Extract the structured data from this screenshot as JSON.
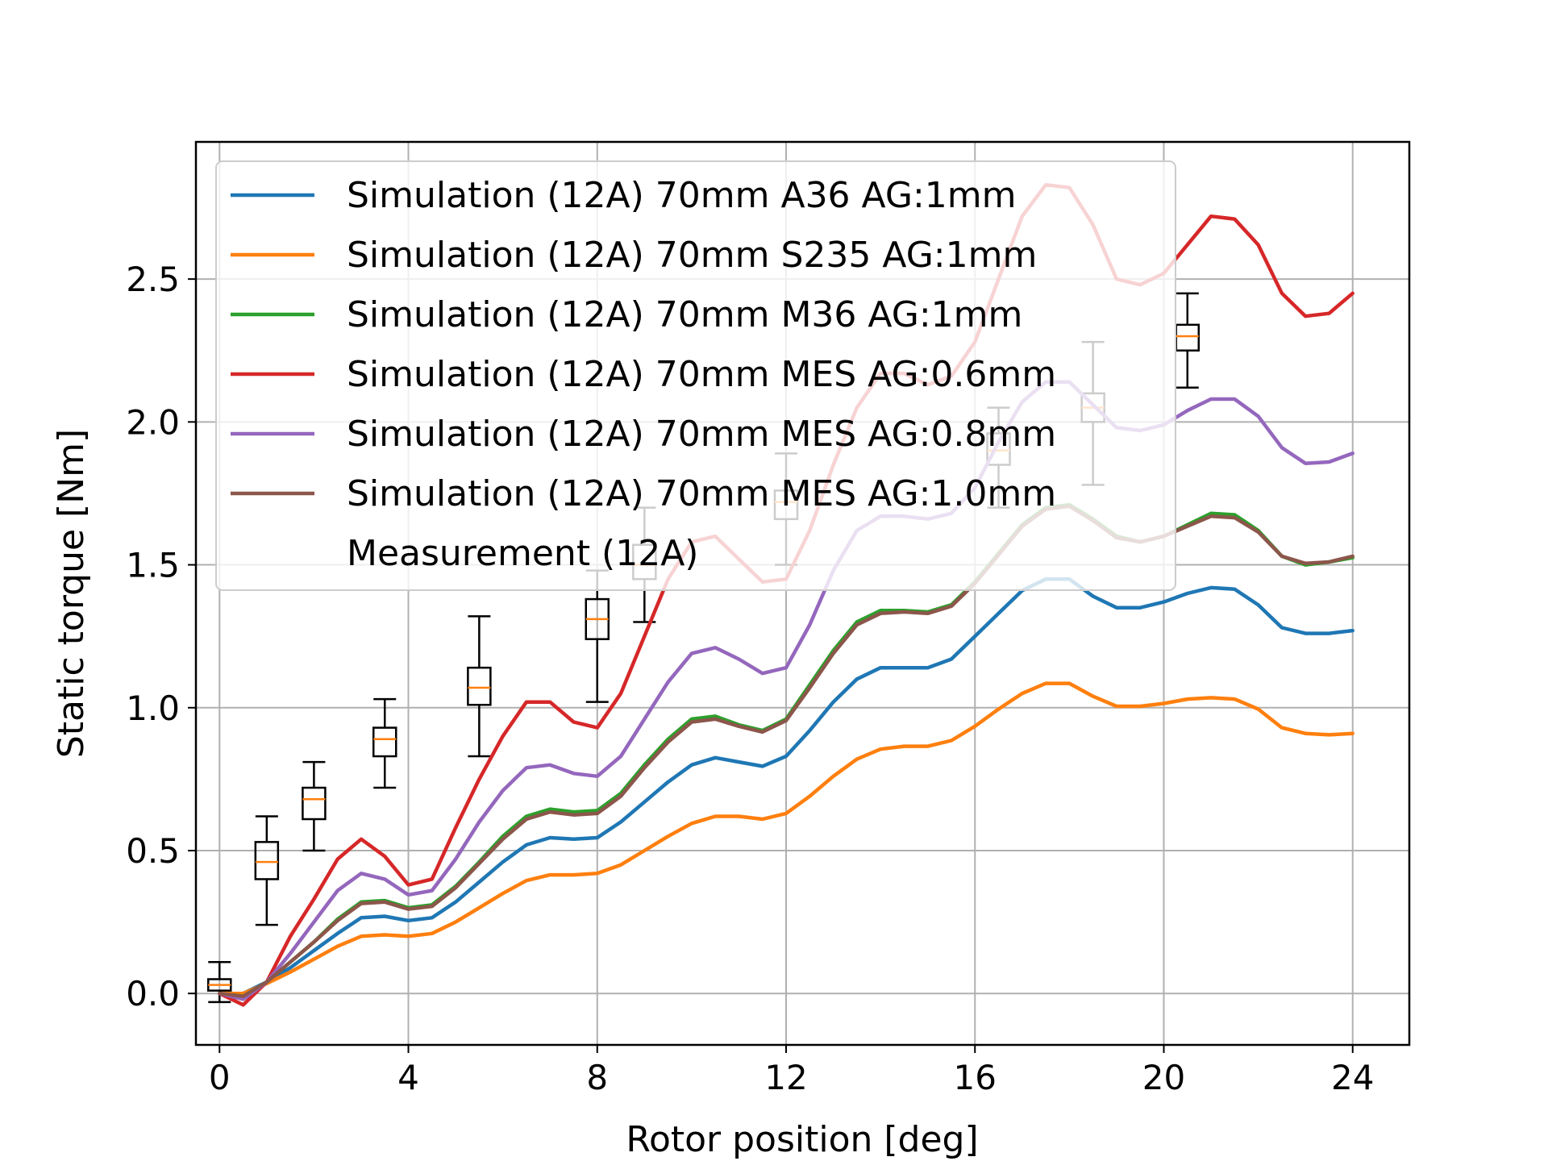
{
  "chart_data": {
    "type": "line",
    "xlabel": "Rotor position [deg]",
    "ylabel": "Static torque [Nm]",
    "xlim": [
      -0.5,
      25.2
    ],
    "ylim": [
      -0.18,
      2.98
    ],
    "xticks": [
      0,
      4,
      8,
      12,
      16,
      20,
      24
    ],
    "yticks": [
      0.0,
      0.5,
      1.0,
      1.5,
      2.0,
      2.5
    ],
    "xtick_labels": [
      "0",
      "4",
      "8",
      "12",
      "16",
      "20",
      "24"
    ],
    "ytick_labels": [
      "0.0",
      "0.5",
      "1.0",
      "1.5",
      "2.0",
      "2.5"
    ],
    "grid": true,
    "legend_position": "upper-left",
    "series": [
      {
        "name": "Simulation (12A) 70mm A36 AG:1mm",
        "color": "#1f77b4",
        "x": [
          0,
          0.5,
          1,
          1.5,
          2,
          2.5,
          3,
          3.5,
          4,
          4.5,
          5,
          5.5,
          6,
          6.5,
          7,
          7.5,
          8,
          8.5,
          9,
          9.5,
          10,
          10.5,
          11,
          11.5,
          12,
          12.5,
          13,
          13.5,
          14,
          14.5,
          15,
          15.5,
          16,
          16.5,
          17,
          17.5,
          18,
          18.5,
          19,
          19.5,
          20,
          20.5,
          21,
          21.5,
          22,
          22.5,
          23,
          23.5,
          24
        ],
        "y": [
          0.0,
          0.0,
          0.04,
          0.09,
          0.15,
          0.21,
          0.265,
          0.27,
          0.255,
          0.265,
          0.32,
          0.39,
          0.46,
          0.52,
          0.545,
          0.54,
          0.545,
          0.6,
          0.67,
          0.74,
          0.8,
          0.825,
          0.81,
          0.795,
          0.83,
          0.92,
          1.02,
          1.1,
          1.14,
          1.14,
          1.14,
          1.17,
          1.25,
          1.33,
          1.41,
          1.45,
          1.45,
          1.39,
          1.35,
          1.35,
          1.37,
          1.4,
          1.42,
          1.415,
          1.36,
          1.28,
          1.26,
          1.26,
          1.27
        ]
      },
      {
        "name": "Simulation (12A) 70mm S235 AG:1mm",
        "color": "#ff7f0e",
        "x": [
          0,
          0.5,
          1,
          1.5,
          2,
          2.5,
          3,
          3.5,
          4,
          4.5,
          5,
          5.5,
          6,
          6.5,
          7,
          7.5,
          8,
          8.5,
          9,
          9.5,
          10,
          10.5,
          11,
          11.5,
          12,
          12.5,
          13,
          13.5,
          14,
          14.5,
          15,
          15.5,
          16,
          16.5,
          17,
          17.5,
          18,
          18.5,
          19,
          19.5,
          20,
          20.5,
          21,
          21.5,
          22,
          22.5,
          23,
          23.5,
          24
        ],
        "y": [
          0.0,
          0.0,
          0.035,
          0.075,
          0.12,
          0.165,
          0.2,
          0.205,
          0.2,
          0.21,
          0.25,
          0.3,
          0.35,
          0.395,
          0.415,
          0.415,
          0.42,
          0.45,
          0.5,
          0.55,
          0.595,
          0.62,
          0.62,
          0.61,
          0.63,
          0.69,
          0.76,
          0.82,
          0.855,
          0.865,
          0.865,
          0.885,
          0.935,
          0.995,
          1.05,
          1.085,
          1.085,
          1.04,
          1.005,
          1.005,
          1.015,
          1.03,
          1.035,
          1.03,
          0.995,
          0.93,
          0.91,
          0.905,
          0.91
        ]
      },
      {
        "name": "Simulation (12A) 70mm M36 AG:1mm",
        "color": "#2ca02c",
        "x": [
          0,
          0.5,
          1,
          1.5,
          2,
          2.5,
          3,
          3.5,
          4,
          4.5,
          5,
          5.5,
          6,
          6.5,
          7,
          7.5,
          8,
          8.5,
          9,
          9.5,
          10,
          10.5,
          11,
          11.5,
          12,
          12.5,
          13,
          13.5,
          14,
          14.5,
          15,
          15.5,
          16,
          16.5,
          17,
          17.5,
          18,
          18.5,
          19,
          19.5,
          20,
          20.5,
          21,
          21.5,
          22,
          22.5,
          23,
          23.5,
          24
        ],
        "y": [
          0.0,
          -0.01,
          0.04,
          0.11,
          0.18,
          0.26,
          0.32,
          0.325,
          0.3,
          0.31,
          0.375,
          0.46,
          0.55,
          0.62,
          0.645,
          0.635,
          0.64,
          0.7,
          0.8,
          0.89,
          0.96,
          0.97,
          0.94,
          0.92,
          0.96,
          1.08,
          1.2,
          1.3,
          1.34,
          1.34,
          1.335,
          1.36,
          1.44,
          1.54,
          1.64,
          1.7,
          1.71,
          1.66,
          1.6,
          1.58,
          1.6,
          1.64,
          1.68,
          1.675,
          1.62,
          1.53,
          1.5,
          1.51,
          1.525
        ]
      },
      {
        "name": "Simulation (12A) 70mm MES AG:0.6mm",
        "color": "#d62728",
        "x": [
          0,
          0.5,
          1,
          1.5,
          2,
          2.5,
          3,
          3.5,
          4,
          4.5,
          5,
          5.5,
          6,
          6.5,
          7,
          7.5,
          8,
          8.5,
          9,
          9.5,
          10,
          10.5,
          11,
          11.5,
          12,
          12.5,
          13,
          13.5,
          14,
          14.5,
          15,
          15.5,
          16,
          16.5,
          17,
          17.5,
          18,
          18.5,
          19,
          19.5,
          20,
          20.5,
          21,
          21.5,
          22,
          22.5,
          23,
          23.5,
          24
        ],
        "y": [
          0.0,
          -0.04,
          0.04,
          0.2,
          0.33,
          0.47,
          0.54,
          0.48,
          0.38,
          0.4,
          0.58,
          0.75,
          0.9,
          1.02,
          1.02,
          0.95,
          0.93,
          1.05,
          1.25,
          1.45,
          1.58,
          1.6,
          1.52,
          1.44,
          1.45,
          1.62,
          1.85,
          2.05,
          2.17,
          2.17,
          2.13,
          2.16,
          2.28,
          2.5,
          2.72,
          2.83,
          2.82,
          2.69,
          2.5,
          2.48,
          2.52,
          2.62,
          2.72,
          2.71,
          2.62,
          2.45,
          2.37,
          2.38,
          2.45
        ]
      },
      {
        "name": "Simulation (12A) 70mm MES AG:0.8mm",
        "color": "#9467bd",
        "x": [
          0,
          0.5,
          1,
          1.5,
          2,
          2.5,
          3,
          3.5,
          4,
          4.5,
          5,
          5.5,
          6,
          6.5,
          7,
          7.5,
          8,
          8.5,
          9,
          9.5,
          10,
          10.5,
          11,
          11.5,
          12,
          12.5,
          13,
          13.5,
          14,
          14.5,
          15,
          15.5,
          16,
          16.5,
          17,
          17.5,
          18,
          18.5,
          19,
          19.5,
          20,
          20.5,
          21,
          21.5,
          22,
          22.5,
          23,
          23.5,
          24
        ],
        "y": [
          0.0,
          -0.02,
          0.04,
          0.14,
          0.25,
          0.36,
          0.42,
          0.4,
          0.345,
          0.36,
          0.47,
          0.6,
          0.71,
          0.79,
          0.8,
          0.77,
          0.76,
          0.83,
          0.96,
          1.09,
          1.19,
          1.21,
          1.17,
          1.12,
          1.14,
          1.29,
          1.48,
          1.62,
          1.67,
          1.67,
          1.66,
          1.68,
          1.77,
          1.93,
          2.07,
          2.14,
          2.14,
          2.06,
          1.98,
          1.97,
          1.99,
          2.04,
          2.08,
          2.08,
          2.02,
          1.91,
          1.855,
          1.86,
          1.89
        ]
      },
      {
        "name": "Simulation (12A) 70mm MES AG:1.0mm",
        "color": "#8c564b",
        "x": [
          0,
          0.5,
          1,
          1.5,
          2,
          2.5,
          3,
          3.5,
          4,
          4.5,
          5,
          5.5,
          6,
          6.5,
          7,
          7.5,
          8,
          8.5,
          9,
          9.5,
          10,
          10.5,
          11,
          11.5,
          12,
          12.5,
          13,
          13.5,
          14,
          14.5,
          15,
          15.5,
          16,
          16.5,
          17,
          17.5,
          18,
          18.5,
          19,
          19.5,
          20,
          20.5,
          21,
          21.5,
          22,
          22.5,
          23,
          23.5,
          24
        ],
        "y": [
          0.0,
          -0.01,
          0.04,
          0.11,
          0.18,
          0.255,
          0.315,
          0.32,
          0.295,
          0.305,
          0.37,
          0.455,
          0.54,
          0.61,
          0.635,
          0.625,
          0.63,
          0.69,
          0.79,
          0.88,
          0.95,
          0.96,
          0.935,
          0.915,
          0.955,
          1.07,
          1.19,
          1.29,
          1.33,
          1.335,
          1.33,
          1.355,
          1.435,
          1.535,
          1.635,
          1.695,
          1.705,
          1.655,
          1.595,
          1.58,
          1.6,
          1.635,
          1.67,
          1.665,
          1.615,
          1.53,
          1.505,
          1.51,
          1.53
        ]
      }
    ],
    "boxplots": {
      "name": "Measurement (12A)",
      "box_color": "#000000",
      "median_color": "#ff7f0e",
      "boxes": [
        {
          "x": 0.0,
          "whislo": -0.03,
          "q1": 0.01,
          "med": 0.03,
          "q3": 0.05,
          "whishi": 0.11
        },
        {
          "x": 1.0,
          "whislo": 0.24,
          "q1": 0.4,
          "med": 0.46,
          "q3": 0.53,
          "whishi": 0.62
        },
        {
          "x": 2.0,
          "whislo": 0.5,
          "q1": 0.61,
          "med": 0.68,
          "q3": 0.72,
          "whishi": 0.81
        },
        {
          "x": 3.5,
          "whislo": 0.72,
          "q1": 0.83,
          "med": 0.89,
          "q3": 0.93,
          "whishi": 1.03
        },
        {
          "x": 5.5,
          "whislo": 0.83,
          "q1": 1.01,
          "med": 1.07,
          "q3": 1.14,
          "whishi": 1.32
        },
        {
          "x": 8.0,
          "whislo": 1.02,
          "q1": 1.24,
          "med": 1.31,
          "q3": 1.38,
          "whishi": 1.48
        },
        {
          "x": 9.0,
          "whislo": 1.3,
          "q1": 1.45,
          "med": 1.5,
          "q3": 1.57,
          "whishi": 1.7
        },
        {
          "x": 12.0,
          "whislo": 1.5,
          "q1": 1.66,
          "med": 1.72,
          "q3": 1.76,
          "whishi": 1.89
        },
        {
          "x": 16.5,
          "whislo": 1.7,
          "q1": 1.85,
          "med": 1.9,
          "q3": 1.96,
          "whishi": 2.05
        },
        {
          "x": 18.5,
          "whislo": 1.78,
          "q1": 2.0,
          "med": 2.05,
          "q3": 2.1,
          "whishi": 2.28
        },
        {
          "x": 20.5,
          "whislo": 2.12,
          "q1": 2.25,
          "med": 2.3,
          "q3": 2.34,
          "whishi": 2.45
        }
      ]
    }
  }
}
